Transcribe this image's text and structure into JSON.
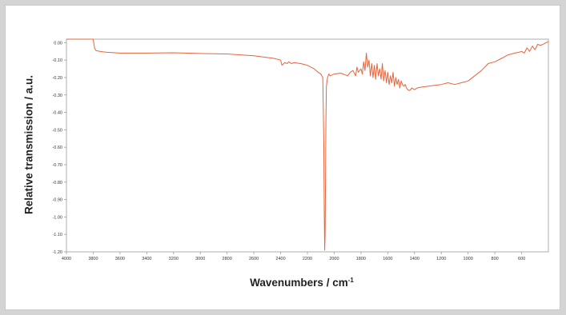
{
  "chart_data": {
    "type": "line",
    "xlabel": "Wavenumbers / cm",
    "xlabel_superscript": "-1",
    "ylabel": "Relative transmission / a.u.",
    "xlim": [
      4000,
      400
    ],
    "ylim": [
      -1.2,
      0.02
    ],
    "x_ticks": [
      "4000",
      "3800",
      "3600",
      "3400",
      "3200",
      "3000",
      "2800",
      "2600",
      "2400",
      "2200",
      "2000",
      "1800",
      "1600",
      "1400",
      "1200",
      "1000",
      "800",
      "600"
    ],
    "y_ticks": [
      "0.00",
      "-0.10",
      "-0.20",
      "-0.30",
      "-0.40",
      "-0.50",
      "-0.60",
      "-0.70",
      "-0.80",
      "-0.90",
      "-1.00",
      "-1.10",
      "-1.20"
    ],
    "grid": false,
    "colors": {
      "series": "#e8643c",
      "axis": "#9a9a9a"
    },
    "series": [
      {
        "x": [
          4000,
          3800,
          3790,
          3780,
          3750,
          3700,
          3600,
          3400,
          3200,
          3000,
          2800,
          2600,
          2450,
          2400,
          2390,
          2370,
          2350,
          2340,
          2320,
          2300,
          2250,
          2200,
          2150,
          2120,
          2100,
          2085,
          2078,
          2074,
          2071,
          2068,
          2065,
          2062,
          2058,
          2050,
          2040,
          2030,
          2000,
          1950,
          1900,
          1880,
          1860,
          1840,
          1830,
          1820,
          1800,
          1790,
          1780,
          1770,
          1760,
          1750,
          1740,
          1730,
          1720,
          1710,
          1700,
          1690,
          1680,
          1670,
          1660,
          1650,
          1640,
          1630,
          1620,
          1610,
          1600,
          1590,
          1580,
          1570,
          1560,
          1550,
          1540,
          1530,
          1520,
          1510,
          1500,
          1490,
          1480,
          1470,
          1460,
          1450,
          1440,
          1430,
          1420,
          1400,
          1380,
          1350,
          1300,
          1250,
          1200,
          1150,
          1100,
          1050,
          1000,
          950,
          900,
          850,
          800,
          750,
          700,
          650,
          620,
          600,
          580,
          560,
          540,
          520,
          500,
          480,
          460,
          440,
          420,
          400
        ],
        "y": [
          0.02,
          0.02,
          -0.03,
          -0.045,
          -0.05,
          -0.055,
          -0.06,
          -0.06,
          -0.058,
          -0.062,
          -0.065,
          -0.075,
          -0.09,
          -0.1,
          -0.13,
          -0.115,
          -0.12,
          -0.11,
          -0.12,
          -0.115,
          -0.12,
          -0.13,
          -0.15,
          -0.17,
          -0.18,
          -0.2,
          -0.55,
          -1.0,
          -1.19,
          -1.1,
          -0.8,
          -0.45,
          -0.25,
          -0.2,
          -0.18,
          -0.19,
          -0.18,
          -0.175,
          -0.19,
          -0.17,
          -0.16,
          -0.19,
          -0.14,
          -0.17,
          -0.15,
          -0.18,
          -0.11,
          -0.16,
          -0.06,
          -0.14,
          -0.1,
          -0.19,
          -0.12,
          -0.2,
          -0.13,
          -0.21,
          -0.12,
          -0.19,
          -0.15,
          -0.21,
          -0.12,
          -0.22,
          -0.16,
          -0.23,
          -0.17,
          -0.24,
          -0.19,
          -0.23,
          -0.17,
          -0.25,
          -0.2,
          -0.24,
          -0.21,
          -0.26,
          -0.22,
          -0.24,
          -0.25,
          -0.24,
          -0.26,
          -0.27,
          -0.275,
          -0.27,
          -0.26,
          -0.27,
          -0.26,
          -0.255,
          -0.25,
          -0.245,
          -0.24,
          -0.23,
          -0.24,
          -0.23,
          -0.22,
          -0.19,
          -0.16,
          -0.12,
          -0.11,
          -0.09,
          -0.07,
          -0.06,
          -0.055,
          -0.05,
          -0.06,
          -0.03,
          -0.05,
          -0.02,
          -0.04,
          -0.01,
          -0.015,
          -0.01,
          0.0,
          0.005
        ]
      }
    ]
  }
}
